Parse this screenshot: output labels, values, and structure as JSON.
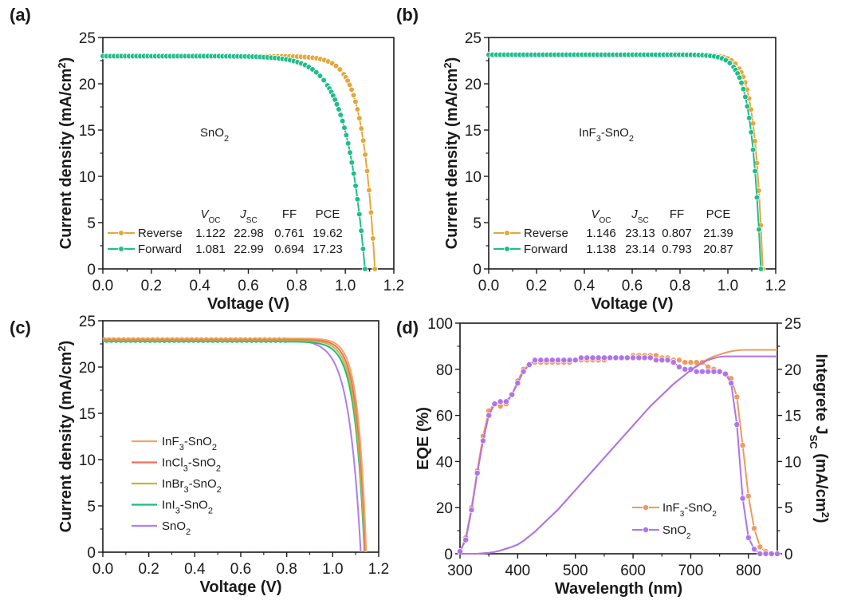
{
  "chart_data": [
    {
      "panel": "(a)",
      "type": "line",
      "title": "",
      "annotation": {
        "base": "SnO",
        "sub": "2",
        "tail": ""
      },
      "xlabel": "Voltage (V)",
      "ylabel": "Current density (mA/cm",
      "ylabel_sup": "2",
      "ylabel_tail": ")",
      "xlim": [
        0.0,
        1.2
      ],
      "ylim": [
        0,
        25
      ],
      "xticks": [
        "0.0",
        "0.2",
        "0.4",
        "0.6",
        "0.8",
        "1.0",
        "1.2"
      ],
      "yticks": [
        "0",
        "5",
        "10",
        "15",
        "20",
        "25"
      ],
      "grid": false,
      "legend_position": "bottom-left",
      "table_header": [
        "V",
        "J",
        "FF",
        "PCE"
      ],
      "table_header_subs": [
        "OC",
        "SC",
        "",
        ""
      ],
      "series": [
        {
          "name": "Reverse",
          "color": "#E3A83B",
          "markers": true,
          "voc": 1.122,
          "jsc": 22.98,
          "ff": 0.761,
          "pce": 19.62,
          "shape": 0.052,
          "table": [
            "1.122",
            "22.98",
            "0.761",
            "19.62"
          ]
        },
        {
          "name": "Forward",
          "color": "#1DBE8B",
          "markers": true,
          "voc": 1.081,
          "jsc": 22.99,
          "ff": 0.694,
          "pce": 17.23,
          "shape": 0.078,
          "table": [
            "1.081",
            "22.99",
            "0.694",
            "17.23"
          ]
        }
      ]
    },
    {
      "panel": "(b)",
      "type": "line",
      "title": "",
      "annotation": {
        "base": "InF",
        "sub": "3",
        "tail": "-SnO",
        "sub2": "2"
      },
      "xlabel": "Voltage (V)",
      "ylabel": "Current density (mA/cm",
      "ylabel_sup": "2",
      "ylabel_tail": ")",
      "xlim": [
        0.0,
        1.2
      ],
      "ylim": [
        0,
        25
      ],
      "xticks": [
        "0.0",
        "0.2",
        "0.4",
        "0.6",
        "0.8",
        "1.0",
        "1.2"
      ],
      "yticks": [
        "0",
        "5",
        "10",
        "15",
        "20",
        "25"
      ],
      "grid": false,
      "legend_position": "bottom-left",
      "table_header": [
        "V",
        "J",
        "FF",
        "PCE"
      ],
      "table_header_subs": [
        "OC",
        "SC",
        "",
        ""
      ],
      "series": [
        {
          "name": "Reverse",
          "color": "#E3A83B",
          "markers": true,
          "voc": 1.146,
          "jsc": 23.13,
          "ff": 0.807,
          "pce": 21.39,
          "shape": 0.036,
          "table": [
            "1.146",
            "23.13",
            "0.807",
            "21.39"
          ]
        },
        {
          "name": "Forward",
          "color": "#1DBE8B",
          "markers": true,
          "voc": 1.138,
          "jsc": 23.14,
          "ff": 0.793,
          "pce": 20.87,
          "shape": 0.04,
          "table": [
            "1.138",
            "23.14",
            "0.793",
            "20.87"
          ]
        }
      ]
    },
    {
      "panel": "(c)",
      "type": "line",
      "title": "",
      "xlabel": "Voltage (V)",
      "ylabel": "Current density (mA/cm",
      "ylabel_sup": "2",
      "ylabel_tail": ")",
      "xlim": [
        0.0,
        1.2
      ],
      "ylim": [
        0,
        25
      ],
      "xticks": [
        "0.0",
        "0.2",
        "0.4",
        "0.6",
        "0.8",
        "1.0",
        "1.2"
      ],
      "yticks": [
        "0",
        "5",
        "10",
        "15",
        "20",
        "25"
      ],
      "grid": false,
      "legend_position": "center-left",
      "series": [
        {
          "name": "InF3-SnO2",
          "label": {
            "a": "InF",
            "s1": "3",
            "b": "-SnO",
            "s2": "2"
          },
          "color": "#F0A46A",
          "voc": 1.146,
          "jsc": 23.1,
          "shape": 0.036
        },
        {
          "name": "InCl3-SnO2",
          "label": {
            "a": "InCl",
            "s1": "3",
            "b": "-SnO",
            "s2": "2"
          },
          "color": "#EE6F5E",
          "voc": 1.143,
          "jsc": 23.0,
          "shape": 0.038
        },
        {
          "name": "InBr3-SnO2",
          "label": {
            "a": "InBr",
            "s1": "3",
            "b": "-SnO",
            "s2": "2"
          },
          "color": "#C9B43E",
          "voc": 1.14,
          "jsc": 22.9,
          "shape": 0.04
        },
        {
          "name": "InI3-SnO2",
          "label": {
            "a": "InI",
            "s1": "3",
            "b": "-SnO",
            "s2": "2"
          },
          "color": "#1DBE73",
          "voc": 1.138,
          "jsc": 22.75,
          "shape": 0.042
        },
        {
          "name": "SnO2",
          "label": {
            "a": "SnO",
            "s1": "",
            "b": "",
            "s2": "2"
          },
          "color": "#B07CF0",
          "voc": 1.122,
          "jsc": 22.98,
          "shape": 0.052
        }
      ]
    },
    {
      "panel": "(d)",
      "type": "line",
      "title": "",
      "xlabel": "Wavelength (nm)",
      "ylabel": "EQE (%)",
      "y2label": "Integrete J",
      "y2label_sub": "SC",
      "y2label_tail": " (mA/cm",
      "y2label_sup": "2",
      "y2label_end": ")",
      "xlim": [
        300,
        850
      ],
      "ylim": [
        0,
        100
      ],
      "y2lim": [
        0,
        25
      ],
      "xticks": [
        "300",
        "400",
        "500",
        "600",
        "700",
        "800"
      ],
      "yticks": [
        "0",
        "20",
        "40",
        "60",
        "80",
        "100"
      ],
      "y2ticks": [
        "0",
        "5",
        "10",
        "15",
        "20",
        "25"
      ],
      "grid": false,
      "legend_position": "bottom-right",
      "x": [
        300,
        310,
        320,
        330,
        340,
        350,
        360,
        370,
        380,
        390,
        400,
        410,
        420,
        430,
        440,
        450,
        460,
        470,
        480,
        490,
        500,
        510,
        520,
        530,
        540,
        550,
        560,
        570,
        580,
        590,
        600,
        610,
        620,
        630,
        640,
        650,
        660,
        670,
        680,
        690,
        700,
        710,
        720,
        730,
        740,
        750,
        760,
        770,
        780,
        790,
        800,
        810,
        820,
        830,
        840,
        850
      ],
      "series": [
        {
          "name": "InF3-SnO2",
          "label": {
            "a": "InF",
            "s1": "3",
            "b": "-SnO",
            "s2": "2"
          },
          "color": "#EC9A5C",
          "eqe": [
            1,
            7,
            20,
            36,
            51,
            62,
            65,
            64,
            65,
            69,
            75,
            80,
            82,
            83,
            83,
            83,
            83,
            83,
            83,
            83,
            84,
            84,
            84,
            84,
            84,
            84,
            85,
            85,
            85,
            85,
            86,
            86,
            86,
            86,
            86,
            85,
            85,
            84,
            84,
            83,
            83,
            83,
            83,
            81,
            80,
            79,
            78,
            76,
            68,
            47,
            25,
            11,
            3,
            1,
            0,
            0
          ],
          "integrated": [
            0,
            0,
            0,
            0,
            0.05,
            0.1,
            0.2,
            0.35,
            0.55,
            0.75,
            1.0,
            1.4,
            1.9,
            2.4,
            3.0,
            3.6,
            4.2,
            4.8,
            5.5,
            6.2,
            6.9,
            7.6,
            8.3,
            9.0,
            9.7,
            10.4,
            11.1,
            11.8,
            12.5,
            13.2,
            13.9,
            14.6,
            15.3,
            16.0,
            16.6,
            17.2,
            17.8,
            18.4,
            18.9,
            19.4,
            19.9,
            20.4,
            20.8,
            21.1,
            21.4,
            21.6,
            21.8,
            21.95,
            22.05,
            22.1,
            22.1,
            22.1,
            22.1,
            22.1,
            22.1,
            22.1
          ]
        },
        {
          "name": "SnO2",
          "label": {
            "a": "SnO",
            "s1": "",
            "b": "",
            "s2": "2"
          },
          "color": "#AF72EC",
          "eqe": [
            1,
            6,
            19,
            35,
            49,
            60,
            65,
            66,
            66,
            69,
            74,
            79,
            82,
            84,
            84,
            84,
            84,
            84,
            84,
            84,
            84,
            85,
            85,
            85,
            85,
            85,
            85,
            85,
            85,
            85,
            85,
            85,
            85,
            85,
            84,
            84,
            84,
            83,
            81,
            80,
            80,
            79,
            79,
            79,
            79,
            79,
            78,
            74,
            56,
            24,
            7,
            2,
            0,
            0,
            0,
            0
          ],
          "integrated": [
            0,
            0,
            0,
            0,
            0.05,
            0.1,
            0.2,
            0.35,
            0.55,
            0.75,
            1.0,
            1.4,
            1.9,
            2.4,
            3.0,
            3.6,
            4.2,
            4.8,
            5.5,
            6.2,
            6.9,
            7.6,
            8.3,
            9.0,
            9.7,
            10.4,
            11.1,
            11.8,
            12.5,
            13.2,
            13.9,
            14.6,
            15.3,
            16.0,
            16.6,
            17.2,
            17.8,
            18.4,
            18.9,
            19.4,
            19.9,
            20.3,
            20.7,
            21.0,
            21.2,
            21.35,
            21.4,
            21.4,
            21.4,
            21.4,
            21.4,
            21.4,
            21.4,
            21.4,
            21.4,
            21.4
          ]
        }
      ]
    }
  ]
}
